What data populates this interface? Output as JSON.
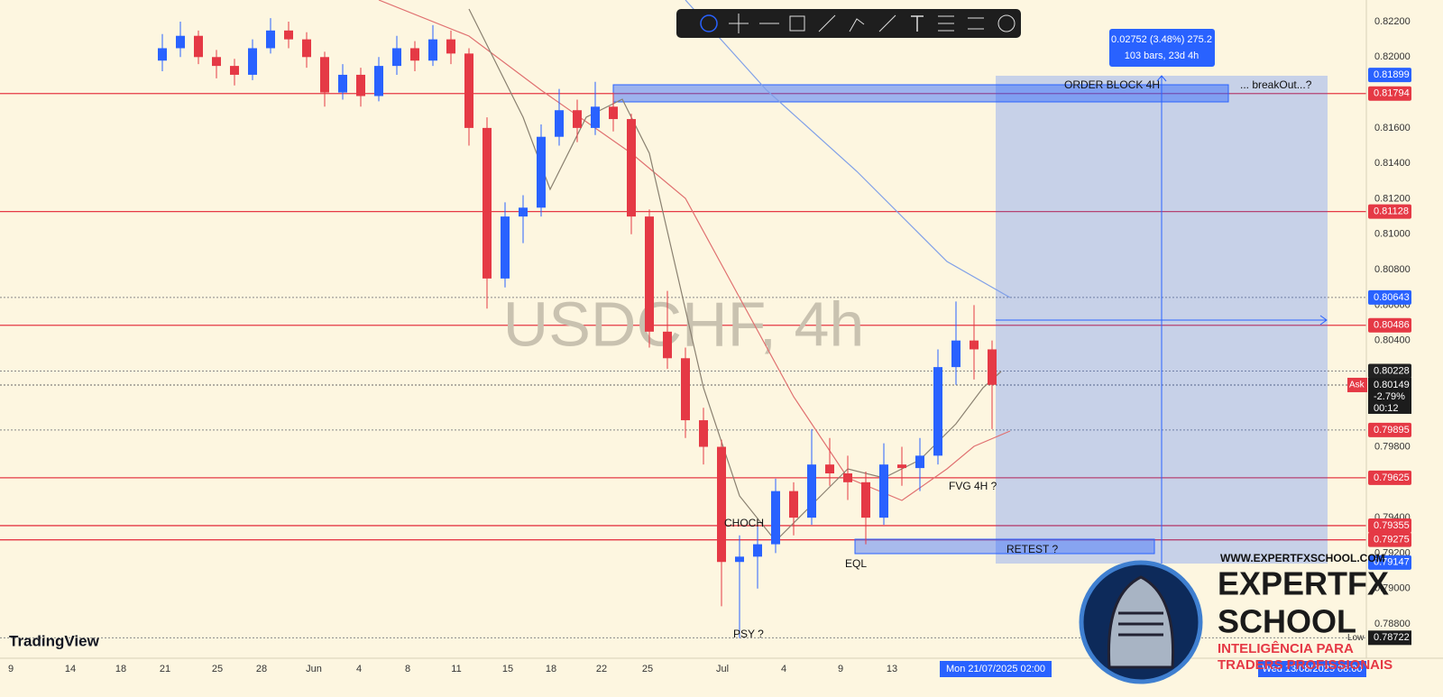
{
  "watermark": "USDCHF, 4h",
  "brand": "TradingView",
  "measure": {
    "line1": "0.02752 (3.48%) 275.2",
    "line2": "103 bars, 23d 4h"
  },
  "annotations": [
    "ORDER BLOCK 4H",
    "... breakOut...?",
    "FVG 4H ?",
    "CHOCH",
    "EQL",
    "RETEST ?",
    "PSY ?"
  ],
  "price_axis": {
    "ticks": [
      "0.82200",
      "0.82000",
      "0.81600",
      "0.81400",
      "0.81200",
      "0.81000",
      "0.80800",
      "0.80600",
      "0.80400",
      "0.79800",
      "0.79400",
      "0.79200",
      "0.79000",
      "0.78800"
    ]
  },
  "badges": [
    {
      "label": "0.81899",
      "color": "#2962ff",
      "line": "none"
    },
    {
      "label": "0.81794",
      "color": "#e53945",
      "line": "solid"
    },
    {
      "label": "0.81128",
      "color": "#e53945",
      "line": "solid"
    },
    {
      "label": "0.80643",
      "color": "#2962ff",
      "line": "dotted"
    },
    {
      "label": "0.80486",
      "color": "#e53945",
      "line": "solid"
    },
    {
      "label": "0.80228",
      "color": "#222222",
      "line": "dotted"
    },
    {
      "label": "0.79895",
      "color": "#e53945",
      "line": "dotted"
    },
    {
      "label": "0.79625",
      "color": "#e53945",
      "line": "solid"
    },
    {
      "label": "0.79355",
      "color": "#e53945",
      "line": "solid"
    },
    {
      "label": "0.79275",
      "color": "#e53945",
      "line": "solid"
    },
    {
      "label": "0.79147",
      "color": "#2962ff",
      "line": "none"
    }
  ],
  "ask": {
    "tag": "Ask",
    "rows": [
      "0.80149",
      "-2.79%",
      "00:12"
    ]
  },
  "low": {
    "tag": "Low",
    "label": "0.78722"
  },
  "time_axis": {
    "labels": [
      "9",
      "14",
      "18",
      "21",
      "25",
      "28",
      "Jun",
      "4",
      "8",
      "11",
      "15",
      "18",
      "22",
      "25",
      "Jul",
      "4",
      "9",
      "13"
    ],
    "cursor": "Mon 21/07/2025  02:00",
    "end": "Wed 13/08/2025  08:00"
  },
  "candles": [
    [
      0.8198,
      0.8213,
      0.8192,
      0.8205
    ],
    [
      0.8205,
      0.822,
      0.82,
      0.8212
    ],
    [
      0.8212,
      0.8215,
      0.8196,
      0.82
    ],
    [
      0.82,
      0.8204,
      0.8188,
      0.8195
    ],
    [
      0.8195,
      0.8199,
      0.8184,
      0.819
    ],
    [
      0.819,
      0.821,
      0.8187,
      0.8205
    ],
    [
      0.8205,
      0.8222,
      0.8202,
      0.8215
    ],
    [
      0.8215,
      0.822,
      0.8205,
      0.821
    ],
    [
      0.821,
      0.8214,
      0.8194,
      0.82
    ],
    [
      0.82,
      0.8203,
      0.8172,
      0.818
    ],
    [
      0.818,
      0.8196,
      0.8176,
      0.819
    ],
    [
      0.819,
      0.8194,
      0.8172,
      0.8178
    ],
    [
      0.8178,
      0.82,
      0.8175,
      0.8195
    ],
    [
      0.8195,
      0.8212,
      0.819,
      0.8205
    ],
    [
      0.8205,
      0.8209,
      0.8192,
      0.8198
    ],
    [
      0.8198,
      0.8218,
      0.8195,
      0.821
    ],
    [
      0.821,
      0.8215,
      0.8196,
      0.8202
    ],
    [
      0.8202,
      0.8205,
      0.815,
      0.816
    ],
    [
      0.816,
      0.8166,
      0.8058,
      0.8075
    ],
    [
      0.8075,
      0.8118,
      0.807,
      0.811
    ],
    [
      0.811,
      0.8122,
      0.8095,
      0.8115
    ],
    [
      0.8115,
      0.8162,
      0.811,
      0.8155
    ],
    [
      0.8155,
      0.8182,
      0.815,
      0.817
    ],
    [
      0.817,
      0.8176,
      0.8152,
      0.816
    ],
    [
      0.816,
      0.8186,
      0.8156,
      0.8172
    ],
    [
      0.8172,
      0.818,
      0.8158,
      0.8165
    ],
    [
      0.8165,
      0.8168,
      0.81,
      0.811
    ],
    [
      0.811,
      0.8114,
      0.8036,
      0.8045
    ],
    [
      0.8045,
      0.8068,
      0.8024,
      0.803
    ],
    [
      0.803,
      0.8036,
      0.7985,
      0.7995
    ],
    [
      0.7995,
      0.8002,
      0.797,
      0.798
    ],
    [
      0.798,
      0.7984,
      0.789,
      0.7915
    ],
    [
      0.7915,
      0.793,
      0.7872,
      0.7918
    ],
    [
      0.7918,
      0.7935,
      0.79,
      0.7925
    ],
    [
      0.7925,
      0.7962,
      0.792,
      0.7955
    ],
    [
      0.7955,
      0.796,
      0.793,
      0.794
    ],
    [
      0.794,
      0.799,
      0.7936,
      0.797
    ],
    [
      0.797,
      0.7985,
      0.7958,
      0.7965
    ],
    [
      0.7965,
      0.7975,
      0.795,
      0.796
    ],
    [
      0.796,
      0.7966,
      0.7925,
      0.794
    ],
    [
      0.794,
      0.7982,
      0.7936,
      0.797
    ],
    [
      0.797,
      0.798,
      0.7958,
      0.7968
    ],
    [
      0.7968,
      0.7985,
      0.7955,
      0.7975
    ],
    [
      0.7975,
      0.8035,
      0.797,
      0.8025
    ],
    [
      0.8025,
      0.8062,
      0.8015,
      0.804
    ],
    [
      0.804,
      0.806,
      0.8018,
      0.8035
    ],
    [
      0.8035,
      0.804,
      0.799,
      0.8015
    ]
  ],
  "candle_colors": {
    "up": "#2962ff",
    "down": "#e53945"
  },
  "logo": {
    "url": "WWW.EXPERTFXSCHOOL.COM",
    "name1": "EXPERTFX",
    "name2": "SCHOOL",
    "tag1": "INTELIGÊNCIA PARA",
    "tag2": "TRADERS PROFISSIONAIS"
  }
}
